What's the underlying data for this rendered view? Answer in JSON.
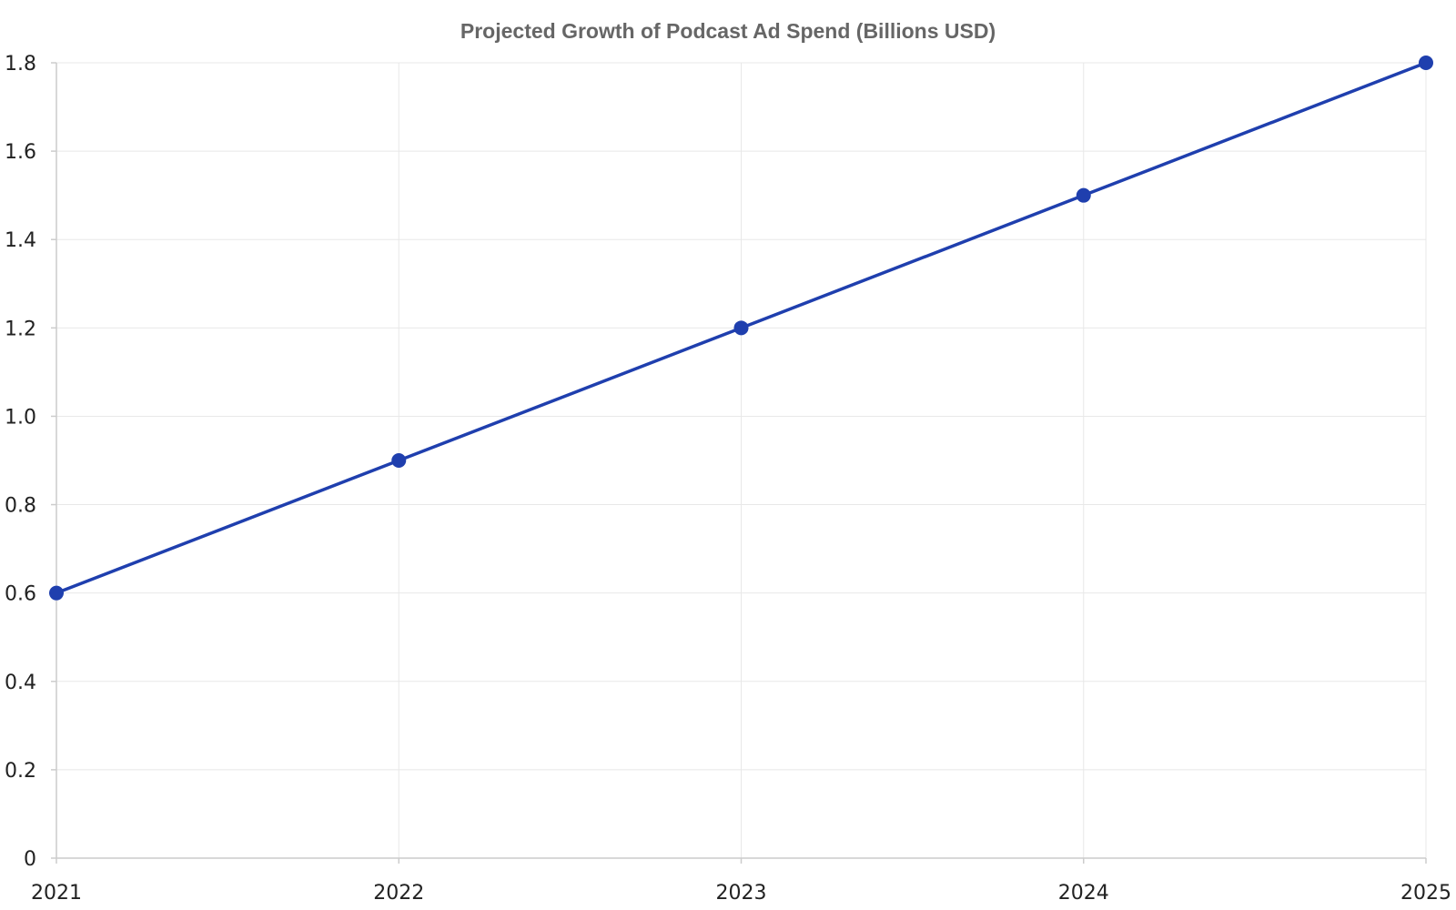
{
  "chart_data": {
    "type": "line",
    "title": "Projected Growth of Podcast Ad Spend (Billions USD)",
    "xlabel": "",
    "ylabel": "",
    "x": [
      "2021",
      "2022",
      "2023",
      "2024",
      "2025"
    ],
    "series": [
      {
        "values": [
          0.6,
          0.9,
          1.2,
          1.5,
          1.8
        ],
        "color": "#1f3fae"
      }
    ],
    "ylim": [
      0,
      1.8
    ],
    "yticks": [
      "0",
      "0.2",
      "0.4",
      "0.6",
      "0.8",
      "1.0",
      "1.2",
      "1.4",
      "1.6",
      "1.8"
    ],
    "grid": true,
    "legend": "none"
  }
}
